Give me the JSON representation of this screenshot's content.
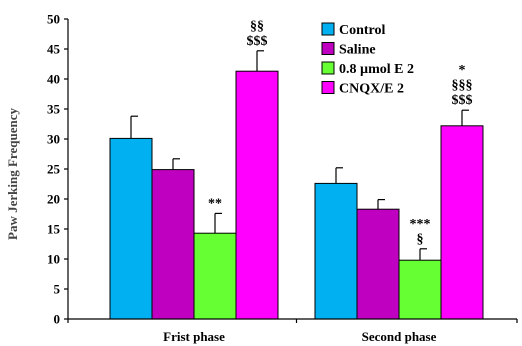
{
  "chart_data": {
    "type": "bar",
    "title": "",
    "xlabel": "",
    "ylabel": "Paw Jerking Frequency",
    "ylim": [
      0,
      50
    ],
    "yticks": [
      0,
      5,
      10,
      15,
      20,
      25,
      30,
      35,
      40,
      45,
      50
    ],
    "grid": false,
    "legend_position": "top-right",
    "categories": [
      "Frist phase",
      "Second phase"
    ],
    "series": [
      {
        "name": "Control",
        "color": "#00B0F0",
        "values": [
          30.1,
          22.6
        ],
        "errors": [
          3.7,
          2.6
        ]
      },
      {
        "name": "Saline",
        "color": "#C000C0",
        "values": [
          24.9,
          18.3
        ],
        "errors": [
          1.8,
          1.6
        ]
      },
      {
        "name": "0.8 µmol E 2",
        "color": "#66FF33",
        "values": [
          14.3,
          9.8
        ],
        "errors": [
          3.3,
          1.9
        ]
      },
      {
        "name": "CNQX/E 2",
        "color": "#FF00FF",
        "values": [
          41.3,
          32.2
        ],
        "errors": [
          3.4,
          2.6
        ]
      }
    ],
    "annotations": [
      {
        "category": 0,
        "series": 2,
        "lines": [
          "**"
        ]
      },
      {
        "category": 0,
        "series": 3,
        "lines": [
          "§§",
          "$$$"
        ]
      },
      {
        "category": 1,
        "series": 2,
        "lines": [
          "***",
          "§"
        ]
      },
      {
        "category": 1,
        "series": 3,
        "lines": [
          "*",
          "§§§",
          "$$$"
        ]
      }
    ]
  }
}
